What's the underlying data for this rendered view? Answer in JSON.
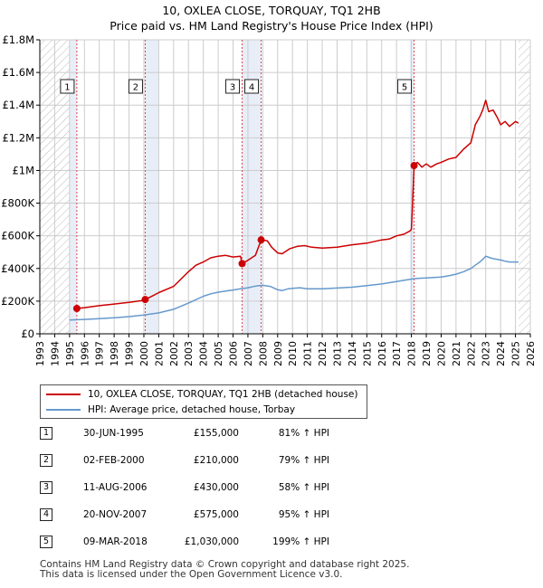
{
  "title_line1": "10, OXLEA CLOSE, TORQUAY, TQ1 2HB",
  "title_line2": "Price paid vs. HM Land Registry's House Price Index (HPI)",
  "colors": {
    "property": "#cc0000",
    "hpi": "#6699cc",
    "shade": "#e8eef8",
    "hatch": "#bbbbbb",
    "grid": "#cccccc",
    "vline": "#dd4444"
  },
  "legend": {
    "property_label": "10, OXLEA CLOSE, TORQUAY, TQ1 2HB (detached house)",
    "hpi_label": "HPI: Average price, detached house, Torbay"
  },
  "sales": [
    {
      "num": "1",
      "date": "30-JUN-1995",
      "price": "£155,000",
      "hpi": "81% ↑ HPI"
    },
    {
      "num": "2",
      "date": "02-FEB-2000",
      "price": "£210,000",
      "hpi": "79% ↑ HPI"
    },
    {
      "num": "3",
      "date": "11-AUG-2006",
      "price": "£430,000",
      "hpi": "58% ↑ HPI"
    },
    {
      "num": "4",
      "date": "20-NOV-2007",
      "price": "£575,000",
      "hpi": "95% ↑ HPI"
    },
    {
      "num": "5",
      "date": "09-MAR-2018",
      "price": "£1,030,000",
      "hpi": "199% ↑ HPI"
    }
  ],
  "footer_line1": "Contains HM Land Registry data © Crown copyright and database right 2025.",
  "footer_line2": "This data is licensed under the Open Government Licence v3.0.",
  "chart_data": {
    "type": "line",
    "title": "10, OXLEA CLOSE, TORQUAY, TQ1 2HB — Price paid vs. HM Land Registry's House Price Index (HPI)",
    "xlim": [
      1993,
      2026
    ],
    "ylim": [
      0,
      1800000
    ],
    "x_ticks": [
      "1993",
      "1994",
      "1995",
      "1996",
      "1997",
      "1998",
      "1999",
      "2000",
      "2001",
      "2002",
      "2003",
      "2004",
      "2005",
      "2006",
      "2007",
      "2008",
      "2009",
      "2010",
      "2011",
      "2012",
      "2013",
      "2014",
      "2015",
      "2016",
      "2017",
      "2018",
      "2019",
      "2020",
      "2021",
      "2022",
      "2023",
      "2024",
      "2025",
      "2026"
    ],
    "y_ticks": [
      {
        "value": 0,
        "label": "£0"
      },
      {
        "value": 200000,
        "label": "£200K"
      },
      {
        "value": 400000,
        "label": "£400K"
      },
      {
        "value": 600000,
        "label": "£600K"
      },
      {
        "value": 800000,
        "label": "£800K"
      },
      {
        "value": 1000000,
        "label": "£1M"
      },
      {
        "value": 1200000,
        "label": "£1.2M"
      },
      {
        "value": 1400000,
        "label": "£1.4M"
      },
      {
        "value": 1600000,
        "label": "£1.6M"
      },
      {
        "value": 1800000,
        "label": "£1.8M"
      }
    ],
    "hatched_ranges": [
      [
        1993,
        1995.0
      ],
      [
        2025.2,
        2026
      ]
    ],
    "shaded_ranges": [
      [
        1995.0,
        1995.49
      ],
      [
        2000.09,
        2001.0
      ],
      [
        2006.61,
        2007.89
      ],
      [
        2017.9,
        2018.18
      ]
    ],
    "sale_markers": [
      {
        "label": "1",
        "x": 1995.49,
        "y": 155000
      },
      {
        "label": "2",
        "x": 2000.09,
        "y": 210000
      },
      {
        "label": "3",
        "x": 2006.61,
        "y": 430000
      },
      {
        "label": "4",
        "x": 2007.89,
        "y": 575000
      },
      {
        "label": "5",
        "x": 2018.18,
        "y": 1030000
      }
    ],
    "series": [
      {
        "name": "10, OXLEA CLOSE, TORQUAY, TQ1 2HB (detached house)",
        "x": [
          1995.49,
          1996.0,
          1997.0,
          1998.0,
          1999.0,
          2000.0,
          2000.09,
          2000.5,
          2001.0,
          2002.0,
          2003.0,
          2003.5,
          2004.0,
          2004.5,
          2005.0,
          2005.5,
          2006.0,
          2006.5,
          2006.61,
          2007.0,
          2007.5,
          2007.89,
          2008.3,
          2008.6,
          2009.0,
          2009.3,
          2009.8,
          2010.3,
          2010.8,
          2011.3,
          2012.0,
          2013.0,
          2014.0,
          2015.0,
          2016.0,
          2016.5,
          2017.0,
          2017.5,
          2017.9,
          2018.0,
          2018.18,
          2018.4,
          2018.7,
          2019.0,
          2019.3,
          2019.7,
          2020.0,
          2020.5,
          2021.0,
          2021.5,
          2022.0,
          2022.3,
          2022.6,
          2022.8,
          2023.0,
          2023.2,
          2023.5,
          2023.8,
          2024.0,
          2024.3,
          2024.6,
          2025.0,
          2025.2
        ],
        "values": [
          155000,
          160000,
          172000,
          182000,
          192000,
          205000,
          210000,
          228000,
          252000,
          290000,
          380000,
          420000,
          440000,
          465000,
          475000,
          480000,
          470000,
          475000,
          430000,
          450000,
          480000,
          575000,
          570000,
          530000,
          495000,
          490000,
          520000,
          535000,
          540000,
          530000,
          525000,
          530000,
          545000,
          555000,
          575000,
          580000,
          600000,
          610000,
          630000,
          640000,
          1030000,
          1050000,
          1020000,
          1040000,
          1020000,
          1040000,
          1050000,
          1070000,
          1080000,
          1130000,
          1170000,
          1280000,
          1330000,
          1370000,
          1430000,
          1360000,
          1370000,
          1320000,
          1280000,
          1300000,
          1270000,
          1300000,
          1290000
        ]
      },
      {
        "name": "HPI: Average price, detached house, Torbay",
        "x": [
          1995.0,
          1996.0,
          1997.0,
          1998.0,
          1999.0,
          2000.0,
          2001.0,
          2002.0,
          2003.0,
          2004.0,
          2004.5,
          2005.0,
          2005.5,
          2006.0,
          2006.5,
          2007.0,
          2007.5,
          2008.0,
          2008.5,
          2009.0,
          2009.3,
          2009.7,
          2010.0,
          2010.5,
          2011.0,
          2012.0,
          2013.0,
          2014.0,
          2015.0,
          2016.0,
          2017.0,
          2018.0,
          2018.5,
          2019.0,
          2019.5,
          2020.0,
          2020.5,
          2021.0,
          2021.5,
          2022.0,
          2022.3,
          2022.6,
          2022.8,
          2023.0,
          2023.3,
          2023.6,
          2024.0,
          2024.3,
          2024.6,
          2025.0,
          2025.2
        ],
        "values": [
          85000,
          88000,
          93000,
          98000,
          105000,
          115000,
          128000,
          150000,
          188000,
          230000,
          245000,
          255000,
          262000,
          268000,
          275000,
          282000,
          292000,
          297000,
          290000,
          270000,
          265000,
          275000,
          278000,
          282000,
          275000,
          275000,
          280000,
          285000,
          295000,
          305000,
          320000,
          335000,
          340000,
          342000,
          345000,
          348000,
          355000,
          365000,
          380000,
          400000,
          420000,
          440000,
          455000,
          475000,
          465000,
          458000,
          452000,
          445000,
          440000,
          440000,
          440000
        ]
      }
    ]
  }
}
